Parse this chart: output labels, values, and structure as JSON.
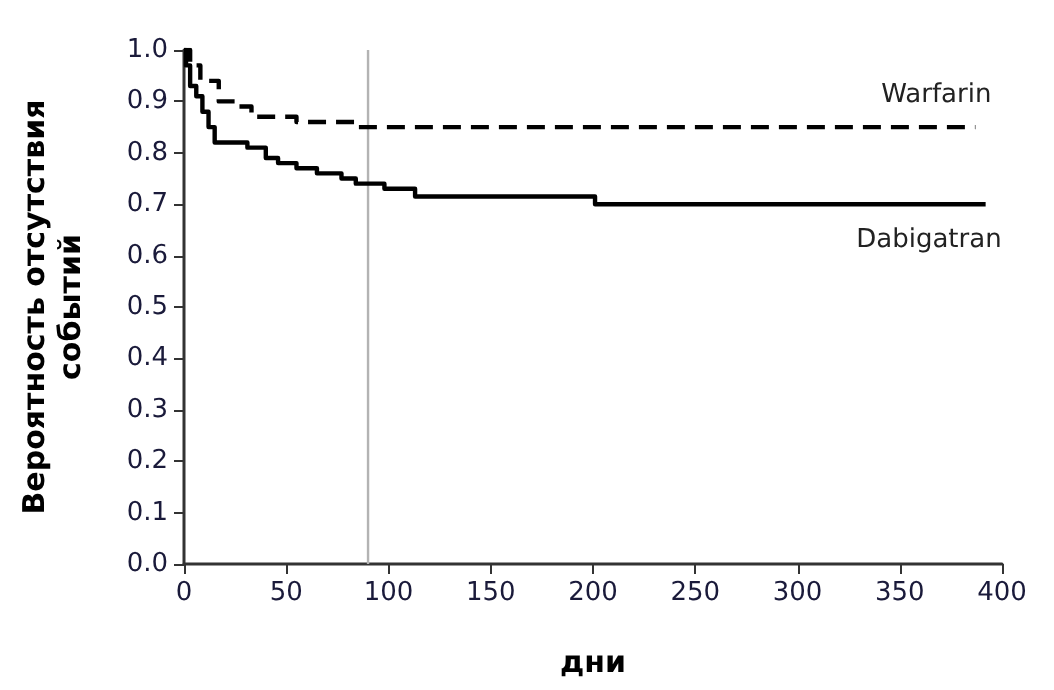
{
  "chart_data": {
    "type": "step",
    "xlabel": "дни",
    "ylabel": "Вероятность отсутствия\nсобытий",
    "xlim": [
      0,
      400
    ],
    "xticks": [
      0,
      50,
      100,
      150,
      200,
      250,
      300,
      350,
      400
    ],
    "ylim": [
      0,
      1.0
    ],
    "yticks": [
      {
        "value": 0,
        "label": "0.0"
      },
      {
        "value": 0.1,
        "label": "0.1"
      },
      {
        "value": 0.2,
        "label": "0.2"
      },
      {
        "value": 0.3,
        "label": "0.3"
      },
      {
        "value": 0.4,
        "label": "0.4"
      },
      {
        "value": 0.5,
        "label": "0.5"
      },
      {
        "value": 0.6,
        "label": "0.6"
      },
      {
        "value": 0.7,
        "label": "0.7"
      },
      {
        "value": 0.8,
        "label": "0.8"
      },
      {
        "value": 0.9,
        "label": "0.9"
      },
      {
        "value": 1.0,
        "label": "1.0"
      }
    ],
    "grid": false,
    "legend": false,
    "marker": "none",
    "ref_lines": [
      {
        "axis": "x",
        "value": 90,
        "color": "#b3b3b3"
      }
    ],
    "series": [
      {
        "name": "Warfarin",
        "color": "#000000",
        "line_style": "dashed",
        "x": [
          0,
          3,
          8,
          17,
          25,
          33,
          39,
          55,
          84,
          387
        ],
        "values": [
          1.0,
          0.97,
          0.94,
          0.9,
          0.89,
          0.87,
          0.87,
          0.86,
          0.85,
          0.85
        ]
      },
      {
        "name": "Dabigatran",
        "color": "#000000",
        "line_style": "solid",
        "x": [
          0,
          1,
          3,
          6,
          9,
          12,
          15,
          31,
          40,
          46,
          55,
          65,
          77,
          84,
          98,
          113,
          201,
          392
        ],
        "values": [
          1.0,
          0.97,
          0.93,
          0.91,
          0.88,
          0.85,
          0.82,
          0.81,
          0.79,
          0.78,
          0.77,
          0.76,
          0.75,
          0.74,
          0.73,
          0.715,
          0.7,
          0.7
        ]
      }
    ]
  }
}
